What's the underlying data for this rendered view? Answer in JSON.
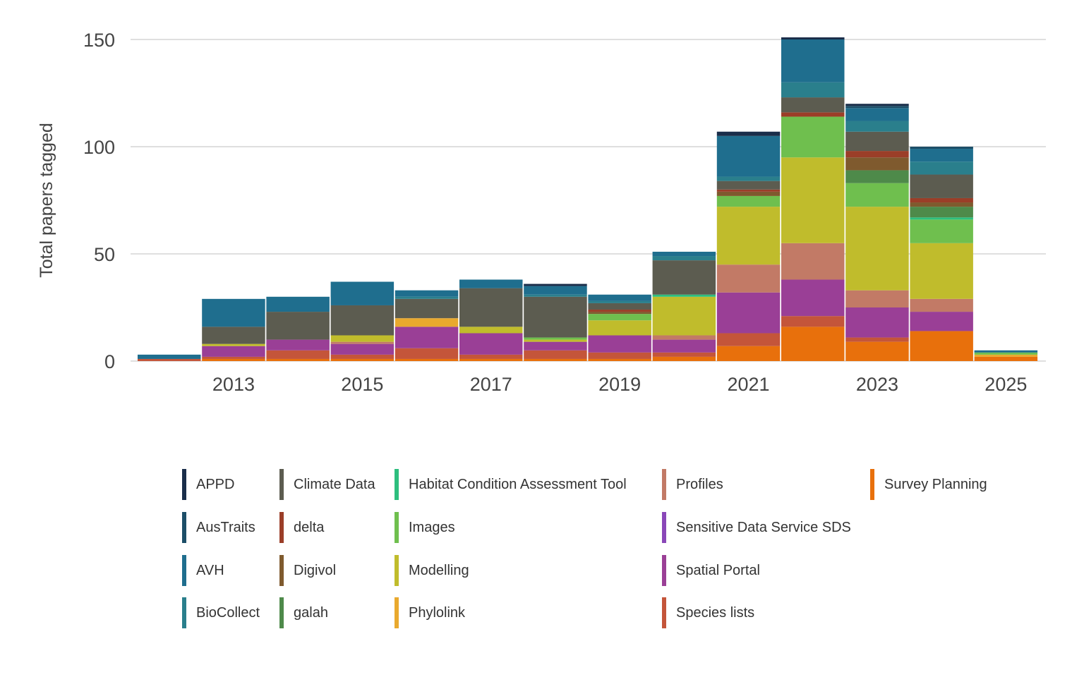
{
  "chart_data": {
    "type": "bar",
    "stacked": true,
    "title": "",
    "xlabel": "",
    "ylabel": "Total papers tagged",
    "ylim": [
      0,
      150
    ],
    "yticks": [
      0,
      50,
      100,
      150
    ],
    "xticks": [
      "2013",
      "2015",
      "2017",
      "2019",
      "2021",
      "2023",
      "2025"
    ],
    "grid": true,
    "legend_position": "bottom",
    "categories": [
      "2012",
      "2013",
      "2014",
      "2015",
      "2016",
      "2017",
      "2018",
      "2019",
      "2020",
      "2021",
      "2022",
      "2023",
      "2024",
      "2025"
    ],
    "series": [
      {
        "name": "Survey Planning",
        "color": "#E8700C",
        "values": [
          0,
          1,
          1,
          1,
          1,
          1,
          1,
          1,
          2,
          7,
          16,
          9,
          14,
          2
        ]
      },
      {
        "name": "Species lists",
        "color": "#C4553A",
        "values": [
          1,
          1,
          4,
          2,
          5,
          2,
          4,
          3,
          2,
          6,
          5,
          2,
          0,
          0
        ]
      },
      {
        "name": "Spatial Portal",
        "color": "#9A3F96",
        "values": [
          0,
          5,
          5,
          5,
          10,
          10,
          4,
          8,
          6,
          19,
          17,
          14,
          9,
          0
        ]
      },
      {
        "name": "Sensitive Data Service SDS",
        "color": "#8A47B8",
        "values": [
          0,
          0,
          0,
          0,
          0,
          0,
          0,
          0,
          0,
          0,
          0,
          0,
          0,
          0
        ]
      },
      {
        "name": "Profiles",
        "color": "#C27A66",
        "values": [
          0,
          0,
          0,
          1,
          0,
          0,
          0,
          0,
          2,
          13,
          17,
          8,
          6,
          0
        ]
      },
      {
        "name": "Phylolink",
        "color": "#E9A92E",
        "values": [
          0,
          0,
          0,
          0,
          4,
          0,
          0,
          0,
          0,
          0,
          0,
          0,
          0,
          1
        ]
      },
      {
        "name": "Modelling",
        "color": "#C0BC2C",
        "values": [
          0,
          1,
          0,
          3,
          0,
          3,
          1,
          7,
          18,
          27,
          40,
          39,
          26,
          0
        ]
      },
      {
        "name": "Images",
        "color": "#6FBF4E",
        "values": [
          0,
          0,
          0,
          0,
          0,
          0,
          1,
          3,
          0,
          5,
          19,
          11,
          11,
          1
        ]
      },
      {
        "name": "Habitat Condition Assessment Tool",
        "color": "#2DBE7E",
        "values": [
          0,
          0,
          0,
          0,
          0,
          0,
          0,
          0,
          1,
          0,
          0,
          0,
          1,
          0
        ]
      },
      {
        "name": "galah",
        "color": "#4E8A4A",
        "values": [
          0,
          0,
          0,
          0,
          0,
          0,
          0,
          0,
          0,
          0,
          0,
          6,
          5,
          0
        ]
      },
      {
        "name": "Digivol",
        "color": "#7F5A2E",
        "values": [
          0,
          0,
          0,
          0,
          0,
          0,
          0,
          1,
          0,
          2,
          0,
          6,
          2,
          0
        ]
      },
      {
        "name": "delta",
        "color": "#9B3E28",
        "values": [
          0,
          0,
          0,
          0,
          0,
          0,
          0,
          1,
          0,
          1,
          2,
          3,
          2,
          0
        ]
      },
      {
        "name": "Climate Data",
        "color": "#5C5C50",
        "values": [
          0,
          8,
          13,
          14,
          9,
          18,
          19,
          3,
          16,
          4,
          7,
          9,
          11,
          0
        ]
      },
      {
        "name": "BioCollect",
        "color": "#2A7F8C",
        "values": [
          0,
          0,
          0,
          0,
          1,
          0,
          1,
          1,
          2,
          2,
          7,
          5,
          6,
          0
        ]
      },
      {
        "name": "AVH",
        "color": "#1F6E8E",
        "values": [
          2,
          13,
          7,
          11,
          3,
          4,
          4,
          3,
          2,
          19,
          20,
          6,
          6,
          1
        ]
      },
      {
        "name": "AusTraits",
        "color": "#1C4E68",
        "values": [
          0,
          0,
          0,
          0,
          0,
          0,
          0,
          0,
          0,
          0,
          0,
          1,
          1,
          0
        ]
      },
      {
        "name": "APPD",
        "color": "#1A2E4A",
        "values": [
          0,
          0,
          0,
          0,
          0,
          0,
          1,
          0,
          0,
          2,
          1,
          1,
          0,
          0
        ]
      }
    ]
  },
  "legend": {
    "columns": [
      [
        "APPD",
        "AusTraits",
        "AVH",
        "BioCollect"
      ],
      [
        "Climate Data",
        "delta",
        "Digivol",
        "galah"
      ],
      [
        "Habitat Condition Assessment Tool",
        "Images",
        "Modelling",
        "Phylolink"
      ],
      [
        "Profiles",
        "Sensitive Data Service SDS",
        "Spatial Portal",
        "Species lists"
      ],
      [
        "Survey Planning"
      ]
    ]
  }
}
